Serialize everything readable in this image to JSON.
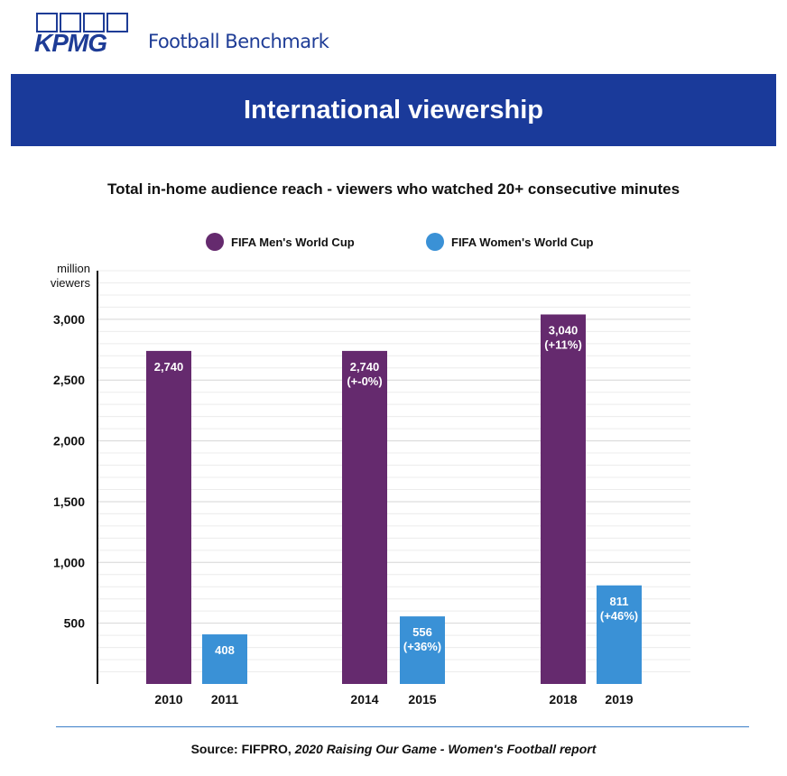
{
  "brand": {
    "logo_text": "KPMG",
    "product": "Football Benchmark",
    "color": "#1e3c96"
  },
  "banner": {
    "title": "International viewership",
    "color": "#1a3a9a"
  },
  "chart_data": {
    "type": "bar",
    "title": "Total in-home audience reach - viewers who watched 20+ consecutive minutes",
    "ylabel": "million viewers",
    "ylabel_lines": [
      "million",
      "viewers"
    ],
    "ylim": [
      0,
      3400
    ],
    "yticks": [
      500,
      1000,
      1500,
      2000,
      2500,
      3000
    ],
    "ytick_labels": [
      "500",
      "1,000",
      "1,500",
      "2,000",
      "2,500",
      "3,000"
    ],
    "grid": true,
    "legend_position": "top-center",
    "categories": [
      "2010",
      "2011",
      "2014",
      "2015",
      "2018",
      "2019"
    ],
    "series": [
      {
        "name": "FIFA Men's World Cup",
        "color": "#652a6e",
        "points": [
          {
            "x": "2010",
            "value": 2740,
            "label": "2,740",
            "change": ""
          },
          {
            "x": "2014",
            "value": 2740,
            "label": "2,740",
            "change": "(+-0%)"
          },
          {
            "x": "2018",
            "value": 3040,
            "label": "3,040",
            "change": "(+11%)"
          }
        ]
      },
      {
        "name": "FIFA Women's World Cup",
        "color": "#3a91d6",
        "points": [
          {
            "x": "2011",
            "value": 408,
            "label": "408",
            "change": ""
          },
          {
            "x": "2015",
            "value": 556,
            "label": "556",
            "change": "(+36%)"
          },
          {
            "x": "2019",
            "value": 811,
            "label": "811",
            "change": "(+46%)"
          }
        ]
      }
    ]
  },
  "source": {
    "prefix": "Source: FIFPRO, ",
    "report": "2020 Raising Our Game - Women's Football report"
  }
}
